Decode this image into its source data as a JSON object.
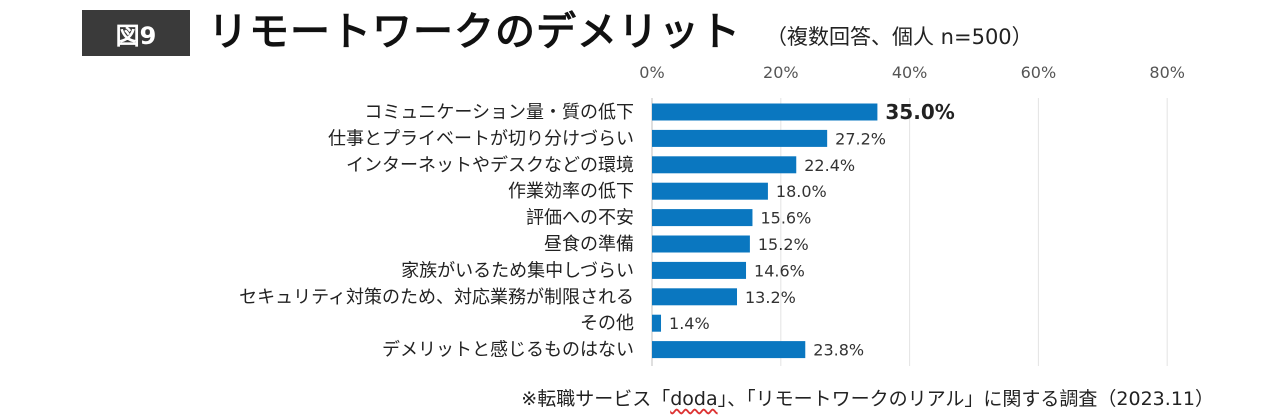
{
  "badge": "図9",
  "title": "リモートワークのデメリット",
  "subtitle": "（複数回答、個人 n=500）",
  "source": {
    "prefix": "※転職サービス「",
    "doda": "doda",
    "suffix": "」、「リモートワークのリアル」に関する調査（2023.11）"
  },
  "chart_data": {
    "type": "bar",
    "orientation": "horizontal",
    "categories": [
      "コミュニケーション量・質の低下",
      "仕事とプライベートが切り分けづらい",
      "インターネットやデスクなどの環境",
      "作業効率の低下",
      "評価への不安",
      "昼食の準備",
      "家族がいるため集中しづらい",
      "セキュリティ対策のため、対応業務が制限される",
      "その他",
      "デメリットと感じるものはない"
    ],
    "values": [
      35.0,
      27.2,
      22.4,
      18.0,
      15.6,
      15.2,
      14.6,
      13.2,
      1.4,
      23.8
    ],
    "value_labels": [
      "35.0%",
      "27.2%",
      "22.4%",
      "18.0%",
      "15.6%",
      "15.2%",
      "14.6%",
      "13.2%",
      "1.4%",
      "23.8%"
    ],
    "xticks": [
      "0%",
      "20%",
      "40%",
      "60%",
      "80%"
    ],
    "xlim": [
      0,
      80
    ],
    "grid": true,
    "bar_color": "#0a77c0",
    "highlight_index": 0
  }
}
